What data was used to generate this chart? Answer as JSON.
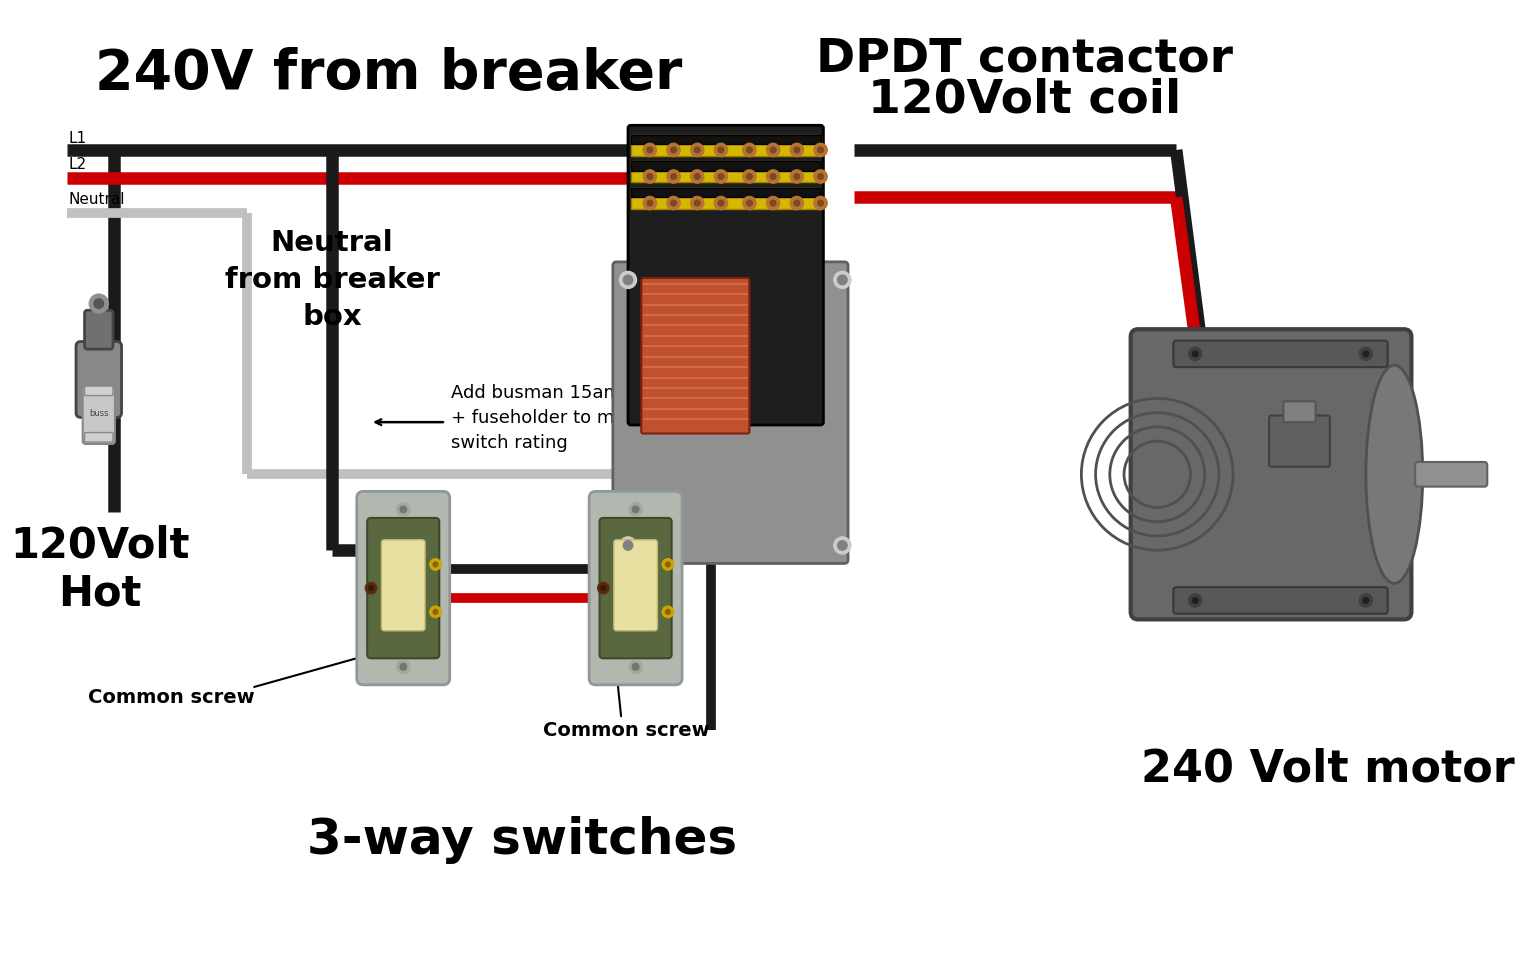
{
  "bg_color": "#ffffff",
  "labels": {
    "240v_from_breaker": "240V from breaker",
    "dpdt_contactor": "DPDT contactor",
    "coil": "120Volt coil",
    "neutral_from_breaker": "Neutral\nfrom breaker\nbox",
    "add_busman": "Add busman 15amp\n+ fuseholder to match\nswitch rating",
    "120volt_hot": "120Volt\nHot",
    "common_screw_left": "Common screw",
    "common_screw_right": "Common screw",
    "3way_switches": "3-way switches",
    "240_volt_motor": "240 Volt motor",
    "L1": "L1",
    "L2": "L2",
    "Neutral": "Neutral"
  },
  "wire_colors": {
    "black": "#1a1a1a",
    "red": "#cc0000",
    "white_gray": "#c0c0c0"
  },
  "component_colors": {
    "contactor_body": "#1e1e1e",
    "contactor_base": "#909090",
    "coil_color": "#c05030",
    "coil_line": "#d4784a",
    "terminal_yellow": "#d4b800",
    "terminal_copper": "#b87333",
    "switch_plate": "#b0b8b0",
    "switch_body": "#5a6840",
    "switch_paddle": "#e8e0a0",
    "motor_body": "#686868",
    "fuse_holder": "#888888",
    "fuse_body": "#c8c8c8"
  }
}
